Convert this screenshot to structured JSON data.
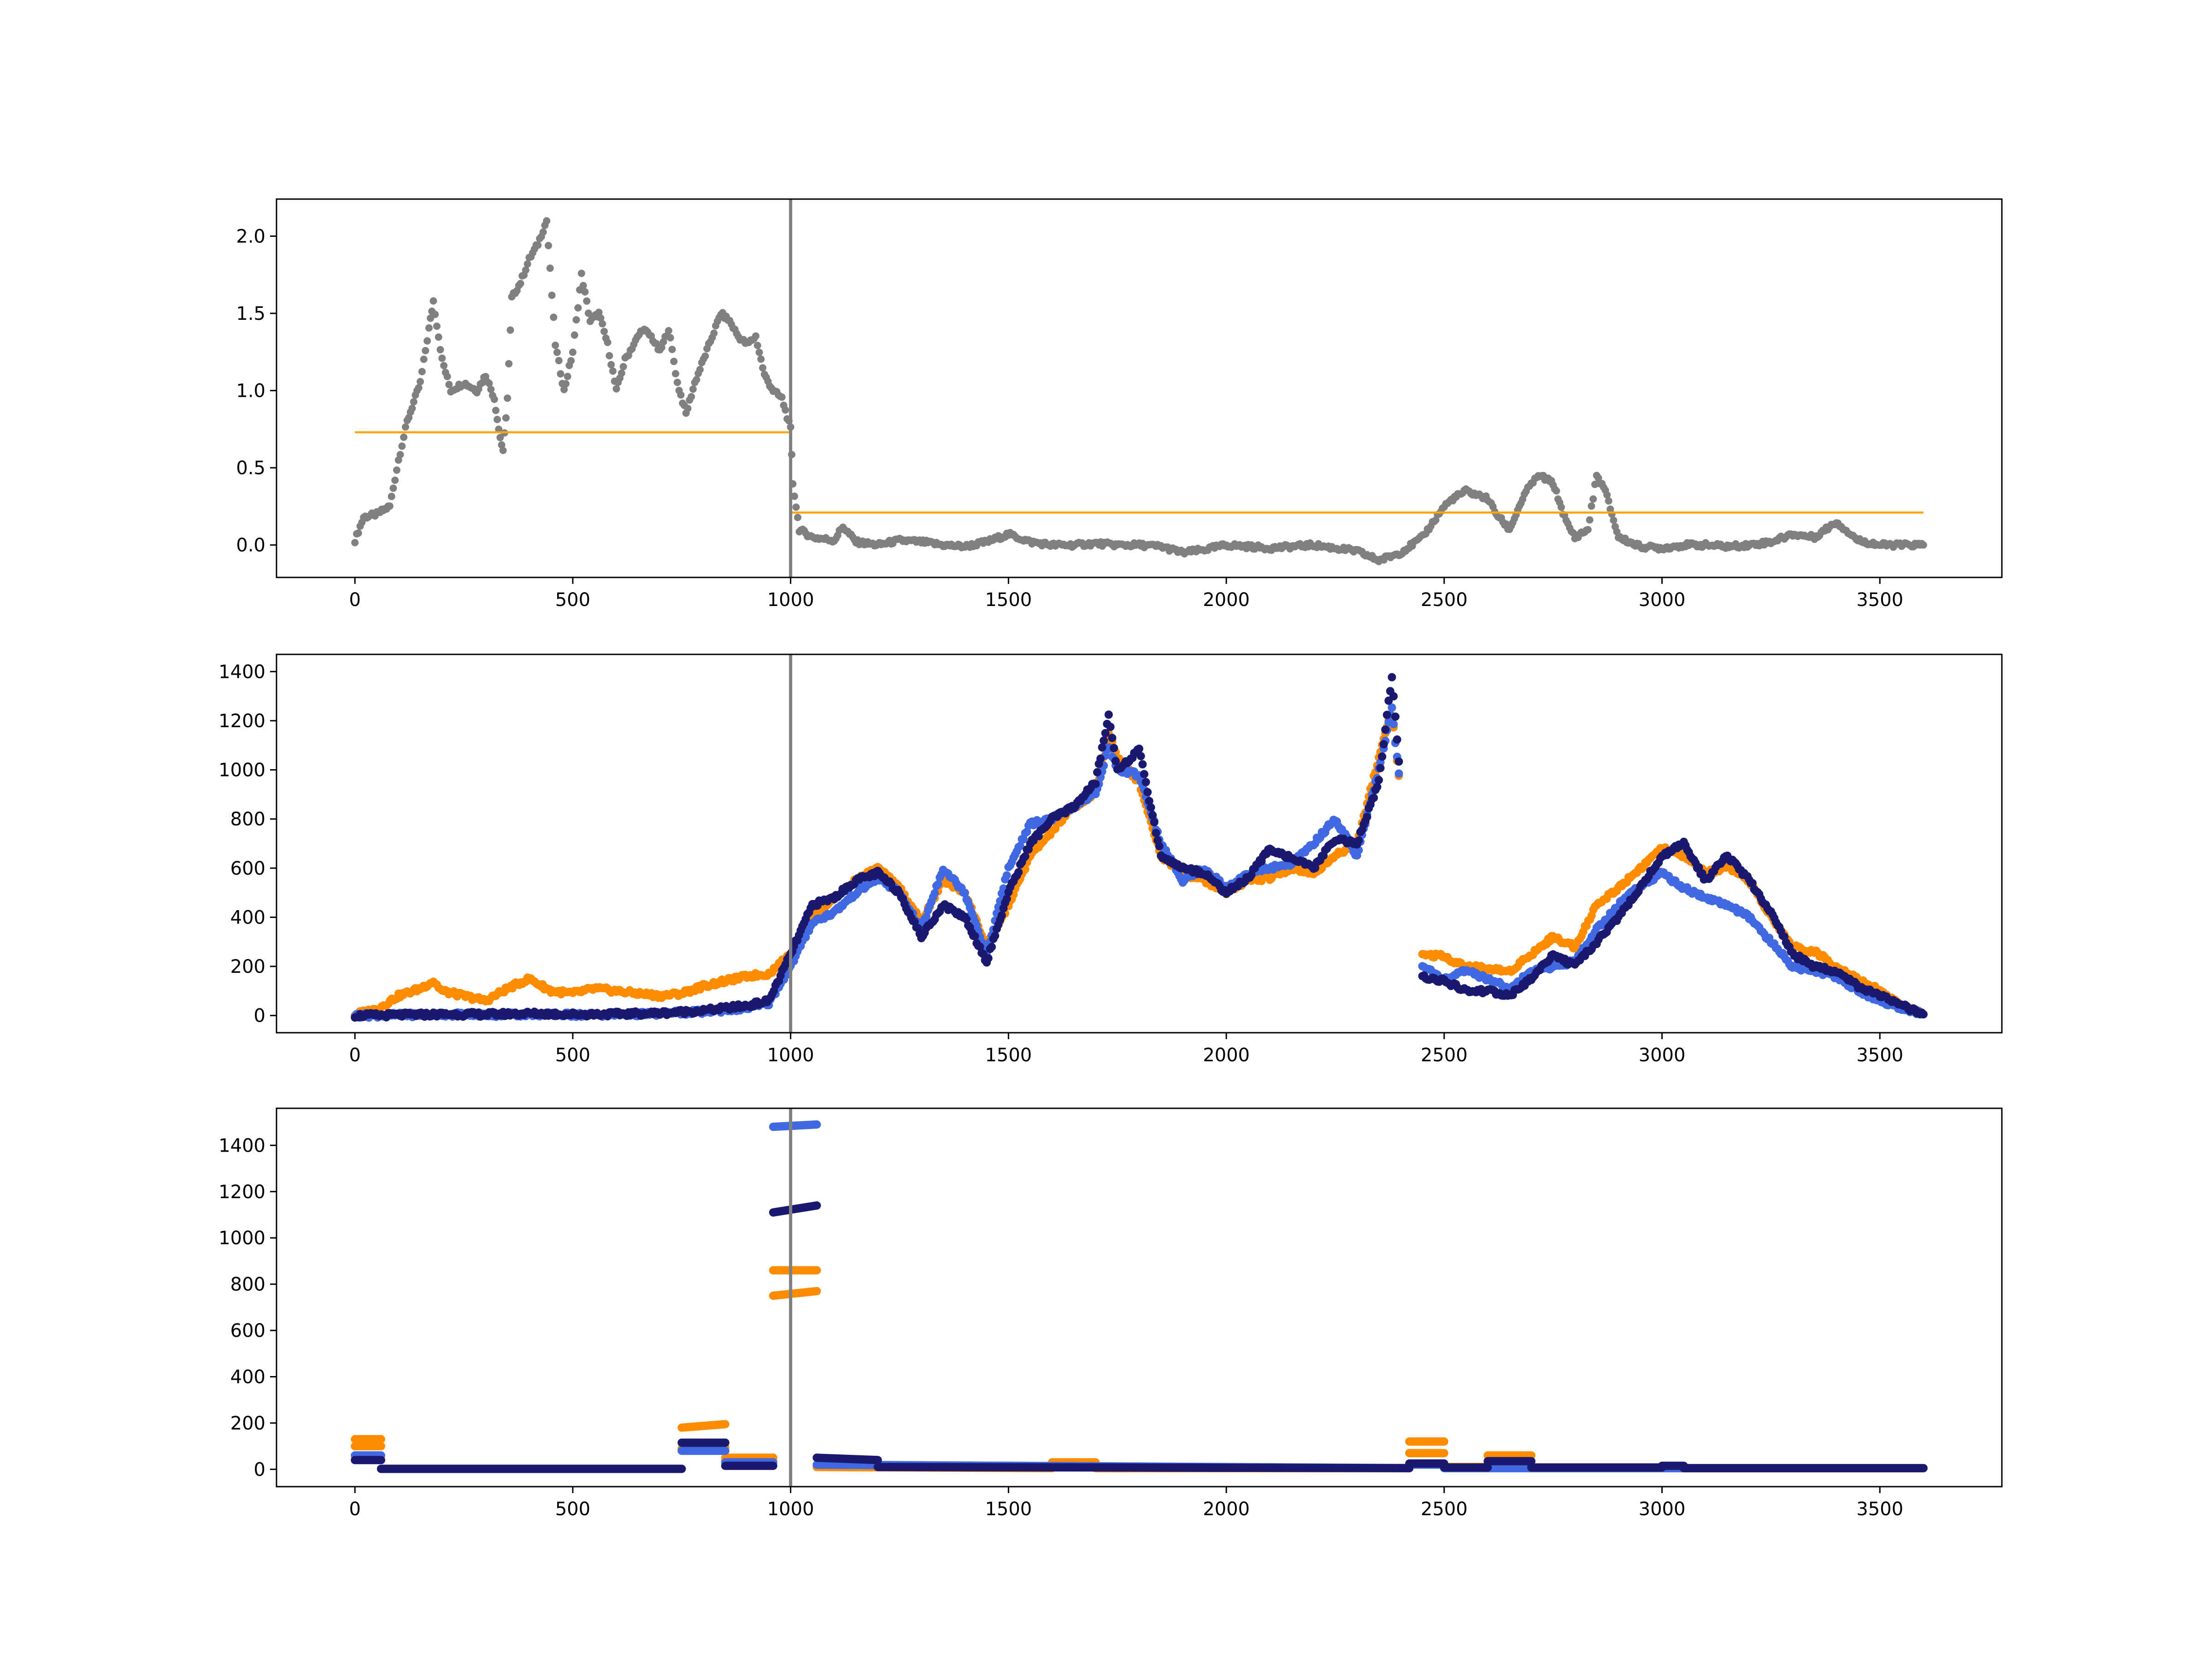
{
  "colors": {
    "gray": "#808080",
    "orange_line": "#FFA500",
    "orange": "#FF8C00",
    "royalblue": "#4169E1",
    "navy": "#191970",
    "vline": "#808080"
  },
  "chart_data": [
    {
      "type": "scatter",
      "title": "",
      "xlabel": "",
      "ylabel": "",
      "xlim": [
        -180,
        3780
      ],
      "ylim": [
        -0.21,
        2.24
      ],
      "xticks": [
        0,
        500,
        1000,
        1500,
        2000,
        2500,
        3000,
        3500
      ],
      "yticks": [
        0.0,
        0.5,
        1.0,
        1.5,
        2.0
      ],
      "ytick_labels": [
        "0.0",
        "0.5",
        "1.0",
        "1.5",
        "2.0"
      ],
      "grid": false,
      "vline_x": 1000,
      "step_line": {
        "segments": [
          {
            "x": [
              0,
              1000
            ],
            "y": 0.73
          },
          {
            "x": [
              1000,
              3600
            ],
            "y": 0.21
          }
        ]
      },
      "series": [
        {
          "x": [
            0,
            20,
            50,
            80,
            100,
            120,
            150,
            170,
            180,
            200,
            220,
            250,
            280,
            300,
            320,
            330,
            340,
            350,
            360,
            380,
            400,
            420,
            440,
            460,
            480,
            500,
            520,
            540,
            560,
            580,
            600,
            620,
            640,
            660,
            680,
            700,
            720,
            740,
            760,
            780,
            800,
            820,
            840,
            860,
            880,
            900,
            920,
            940,
            960,
            980,
            1000,
            1005,
            1020,
            1050,
            1100,
            1120,
            1150,
            1200,
            1250,
            1300,
            1350,
            1400,
            1450,
            1500,
            1550,
            1600,
            1650,
            1700,
            1750,
            1800,
            1850,
            1900,
            1950,
            2000,
            2050,
            2100,
            2150,
            2200,
            2250,
            2300,
            2350,
            2400,
            2450,
            2500,
            2520,
            2550,
            2600,
            2620,
            2650,
            2680,
            2700,
            2720,
            2750,
            2780,
            2800,
            2830,
            2850,
            2870,
            2900,
            2950,
            3000,
            3050,
            3100,
            3150,
            3200,
            3250,
            3300,
            3350,
            3400,
            3450,
            3500,
            3550,
            3600
          ],
          "y": [
            0.03,
            0.18,
            0.2,
            0.25,
            0.55,
            0.8,
            1.05,
            1.4,
            1.58,
            1.2,
            1.0,
            1.05,
            1.0,
            1.1,
            0.95,
            0.75,
            0.6,
            0.95,
            1.6,
            1.7,
            1.85,
            1.95,
            2.1,
            1.3,
            1.0,
            1.25,
            1.75,
            1.45,
            1.5,
            1.3,
            1.0,
            1.2,
            1.3,
            1.4,
            1.35,
            1.25,
            1.4,
            1.05,
            0.85,
            1.05,
            1.2,
            1.35,
            1.5,
            1.45,
            1.35,
            1.3,
            1.35,
            1.1,
            1.0,
            0.95,
            0.75,
            0.4,
            0.1,
            0.05,
            0.03,
            0.12,
            0.02,
            0.0,
            0.03,
            0.02,
            0.0,
            -0.01,
            0.02,
            0.07,
            0.02,
            0.0,
            0.0,
            0.01,
            0.0,
            0.0,
            -0.01,
            -0.05,
            -0.03,
            0.0,
            -0.01,
            -0.02,
            -0.01,
            0.0,
            -0.02,
            -0.04,
            -0.1,
            -0.05,
            0.05,
            0.25,
            0.3,
            0.35,
            0.3,
            0.2,
            0.1,
            0.3,
            0.4,
            0.45,
            0.4,
            0.15,
            0.05,
            0.1,
            0.45,
            0.35,
            0.05,
            -0.01,
            -0.02,
            0.0,
            0.0,
            -0.01,
            0.0,
            0.02,
            0.07,
            0.05,
            0.15,
            0.03,
            0.0,
            0.0,
            0.0
          ]
        }
      ]
    },
    {
      "type": "scatter",
      "title": "",
      "xlabel": "",
      "ylabel": "",
      "xlim": [
        -180,
        3780
      ],
      "ylim": [
        -70,
        1470
      ],
      "xticks": [
        0,
        500,
        1000,
        1500,
        2000,
        2500,
        3000,
        3500
      ],
      "yticks": [
        0,
        200,
        400,
        600,
        800,
        1000,
        1200,
        1400
      ],
      "ytick_labels": [
        "0",
        "200",
        "400",
        "600",
        "800",
        "1000",
        "1200",
        "1400"
      ],
      "grid": false,
      "vline_x": 1000,
      "series": [
        {
          "x": [
            0,
            50,
            100,
            150,
            180,
            200,
            250,
            300,
            350,
            400,
            450,
            500,
            550,
            600,
            650,
            700,
            750,
            800,
            850,
            900,
            950,
            1000,
            1050,
            1100,
            1150,
            1200,
            1250,
            1300,
            1350,
            1400,
            1450,
            1500,
            1550,
            1600,
            1650,
            1700,
            1730,
            1750,
            1800,
            1850,
            1900,
            1950,
            2000,
            2050,
            2100,
            2150,
            2200,
            2250,
            2300,
            2350,
            2380,
            2400,
            2410,
            2450,
            2500,
            2550,
            2600,
            2650,
            2700,
            2750,
            2800,
            2850,
            2900,
            2950,
            3000,
            3050,
            3100,
            3150,
            3200,
            3250,
            3300,
            3350,
            3400,
            3450,
            3500,
            3550,
            3600
          ],
          "y": [
            5,
            25,
            80,
            110,
            140,
            100,
            80,
            60,
            110,
            150,
            100,
            90,
            110,
            100,
            90,
            80,
            90,
            120,
            140,
            160,
            170,
            250,
            400,
            480,
            550,
            600,
            520,
            380,
            550,
            500,
            280,
            450,
            650,
            750,
            850,
            900,
            1150,
            1050,
            950,
            650,
            580,
            550,
            500,
            550,
            560,
            600,
            580,
            650,
            700,
            1050,
            1250,
            900,
            null,
            250,
            240,
            200,
            190,
            180,
            250,
            320,
            280,
            450,
            520,
            600,
            680,
            650,
            580,
            600,
            550,
            400,
            280,
            260,
            200,
            150,
            100,
            40,
            5
          ]
        },
        {
          "x": [
            0,
            100,
            200,
            300,
            400,
            500,
            600,
            700,
            800,
            900,
            950,
            1000,
            1050,
            1100,
            1150,
            1200,
            1250,
            1300,
            1350,
            1400,
            1450,
            1500,
            1550,
            1600,
            1650,
            1700,
            1730,
            1750,
            1800,
            1850,
            1900,
            1950,
            2000,
            2050,
            2100,
            2150,
            2200,
            2250,
            2300,
            2350,
            2380,
            2400,
            2410,
            2450,
            2500,
            2550,
            2600,
            2650,
            2700,
            2750,
            2800,
            2850,
            2900,
            2950,
            3000,
            3050,
            3100,
            3150,
            3200,
            3250,
            3300,
            3350,
            3400,
            3450,
            3500,
            3550,
            3600
          ],
          "y": [
            0,
            2,
            5,
            3,
            5,
            3,
            4,
            8,
            15,
            30,
            50,
            200,
            380,
            420,
            500,
            560,
            500,
            350,
            600,
            500,
            250,
            600,
            780,
            800,
            850,
            900,
            1100,
            1000,
            980,
            700,
            550,
            600,
            520,
            580,
            600,
            620,
            700,
            800,
            650,
            1000,
            1250,
            920,
            null,
            200,
            150,
            180,
            150,
            110,
            180,
            200,
            220,
            350,
            450,
            530,
            580,
            520,
            480,
            450,
            400,
            300,
            200,
            180,
            160,
            100,
            60,
            30,
            5
          ]
        },
        {
          "x": [
            0,
            100,
            200,
            300,
            400,
            500,
            600,
            700,
            800,
            900,
            950,
            1000,
            1050,
            1100,
            1150,
            1200,
            1250,
            1300,
            1350,
            1400,
            1450,
            1500,
            1550,
            1600,
            1650,
            1700,
            1730,
            1750,
            1800,
            1850,
            1900,
            1950,
            2000,
            2050,
            2100,
            2150,
            2200,
            2250,
            2300,
            2350,
            2380,
            2400,
            2410,
            2450,
            2500,
            2550,
            2600,
            2650,
            2700,
            2750,
            2800,
            2850,
            2900,
            2950,
            3000,
            3050,
            3100,
            3150,
            3200,
            3250,
            3300,
            3350,
            3400,
            3450,
            3500,
            3550,
            3600
          ],
          "y": [
            0,
            2,
            5,
            5,
            8,
            5,
            6,
            10,
            20,
            40,
            60,
            250,
            450,
            480,
            550,
            580,
            500,
            320,
            450,
            400,
            220,
            500,
            700,
            800,
            850,
            950,
            1220,
            1000,
            1080,
            650,
            600,
            580,
            500,
            560,
            680,
            640,
            600,
            720,
            700,
            950,
            1380,
            950,
            null,
            160,
            140,
            100,
            100,
            80,
            150,
            250,
            200,
            300,
            400,
            520,
            650,
            700,
            550,
            650,
            550,
            420,
            250,
            200,
            180,
            120,
            80,
            40,
            5
          ]
        }
      ]
    },
    {
      "type": "scatter",
      "title": "",
      "xlabel": "",
      "ylabel": "",
      "xlim": [
        -180,
        3780
      ],
      "ylim": [
        -75,
        1560
      ],
      "xticks": [
        0,
        500,
        1000,
        1500,
        2000,
        2500,
        3000,
        3500
      ],
      "yticks": [
        0,
        200,
        400,
        600,
        800,
        1000,
        1200,
        1400
      ],
      "ytick_labels": [
        "0",
        "200",
        "400",
        "600",
        "800",
        "1000",
        "1200",
        "1400"
      ],
      "grid": false,
      "vline_x": 1000,
      "series": [
        {
          "x": [
            0,
            60,
            null,
            0,
            60,
            null,
            60,
            750,
            null,
            750,
            850,
            null,
            750,
            850,
            null,
            850,
            960,
            null,
            850,
            960,
            null,
            960,
            1060,
            null,
            960,
            1060,
            null,
            1060,
            1600,
            null,
            1600,
            1700,
            null,
            1700,
            2420,
            null,
            2420,
            2500,
            null,
            2420,
            2500,
            null,
            2500,
            2600,
            null,
            2600,
            2700,
            null,
            2700,
            3600
          ],
          "y": [
            130,
            130,
            null,
            100,
            100,
            null,
            2,
            2,
            null,
            180,
            195,
            null,
            90,
            95,
            null,
            50,
            50,
            null,
            35,
            35,
            null,
            750,
            770,
            null,
            860,
            860,
            null,
            10,
            5,
            null,
            30,
            30,
            null,
            5,
            5,
            null,
            120,
            120,
            null,
            70,
            70,
            null,
            10,
            10,
            null,
            60,
            60,
            null,
            5,
            5
          ]
        },
        {
          "x": [
            0,
            60,
            null,
            60,
            750,
            null,
            750,
            850,
            null,
            850,
            960,
            null,
            960,
            1060,
            null,
            1060,
            2420,
            null,
            2420,
            2500,
            null,
            2500,
            3600
          ],
          "y": [
            60,
            60,
            null,
            2,
            2,
            null,
            80,
            80,
            null,
            30,
            30,
            null,
            1480,
            1490,
            null,
            20,
            5,
            null,
            20,
            20,
            null,
            5,
            5
          ]
        },
        {
          "x": [
            0,
            60,
            null,
            60,
            750,
            null,
            750,
            850,
            null,
            850,
            960,
            null,
            960,
            1060,
            null,
            1060,
            1200,
            null,
            1200,
            2420,
            null,
            2420,
            2500,
            null,
            2500,
            2600,
            null,
            2600,
            2700,
            null,
            2700,
            3000,
            null,
            3000,
            3050,
            null,
            3050,
            3600
          ],
          "y": [
            40,
            40,
            null,
            2,
            2,
            null,
            115,
            115,
            null,
            15,
            15,
            null,
            1110,
            1140,
            null,
            50,
            40,
            null,
            10,
            5,
            null,
            25,
            25,
            null,
            8,
            8,
            null,
            35,
            35,
            null,
            8,
            8,
            null,
            15,
            15,
            null,
            5,
            5
          ]
        }
      ]
    }
  ]
}
